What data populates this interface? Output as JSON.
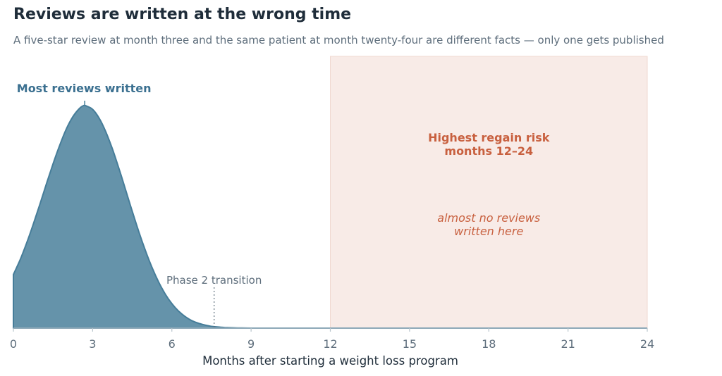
{
  "header": {
    "title": "Reviews are written at the wrong time",
    "subtitle": "A five-star review at month three and the same patient at month twenty-four are different facts — only one gets published"
  },
  "colors": {
    "curve_fill": "#6593aa",
    "curve_stroke": "#467d99",
    "risk_fill": "#f8ebe7",
    "risk_stroke": "#f0d9d1",
    "peak_text": "#3b7090",
    "risk_text": "#c8603f",
    "axis": "#b8c4cc",
    "muted": "#5e6e7c"
  },
  "chart_data": {
    "type": "area",
    "title": "Reviews are written at the wrong time",
    "subtitle": "A five-star review at month three and the same patient at month twenty-four are different facts — only one gets published",
    "xlabel": "Months after starting a weight loss program",
    "ylabel": "",
    "xlim": [
      0,
      24
    ],
    "ylim": [
      0,
      1.1
    ],
    "xticks": [
      0,
      3,
      6,
      9,
      12,
      15,
      18,
      21,
      24
    ],
    "grid": false,
    "series": [
      {
        "x": [
          0,
          0.25,
          0.5,
          0.75,
          1,
          1.25,
          1.5,
          1.75,
          2,
          2.25,
          2.5,
          2.65,
          2.75,
          3,
          3.25,
          3.5,
          3.75,
          4,
          4.25,
          4.5,
          4.75,
          5,
          5.25,
          5.5,
          5.75,
          6,
          6.25,
          6.5,
          6.75,
          7,
          7.25,
          7.5,
          7.75,
          8,
          8.5,
          9,
          10,
          11,
          12,
          13,
          14,
          16,
          18,
          20,
          22,
          24
        ],
        "y": [
          0.241,
          0.306,
          0.382,
          0.466,
          0.556,
          0.648,
          0.738,
          0.821,
          0.894,
          0.95,
          0.987,
          1.0,
          0.999,
          0.983,
          0.943,
          0.882,
          0.805,
          0.716,
          0.621,
          0.525,
          0.433,
          0.348,
          0.272,
          0.207,
          0.153,
          0.11,
          0.077,
          0.052,
          0.034,
          0.022,
          0.014,
          0.008,
          0.005,
          0.003,
          0.001,
          0.0,
          0.0,
          0.0,
          0.0,
          0.0,
          0.0,
          0.0,
          0.0,
          0.0,
          0.0,
          0.0
        ]
      }
    ],
    "shaded_region": {
      "x_start": 12,
      "x_end": 24
    },
    "markers": [
      {
        "x": 2.7,
        "label": "Most reviews written"
      },
      {
        "x": 7.6,
        "label": "Phase 2 transition"
      }
    ],
    "annotations": {
      "risk_line1": "Highest regain risk",
      "risk_line2": "months 12–24",
      "few_line1": "almost no reviews",
      "few_line2": "written here"
    }
  }
}
